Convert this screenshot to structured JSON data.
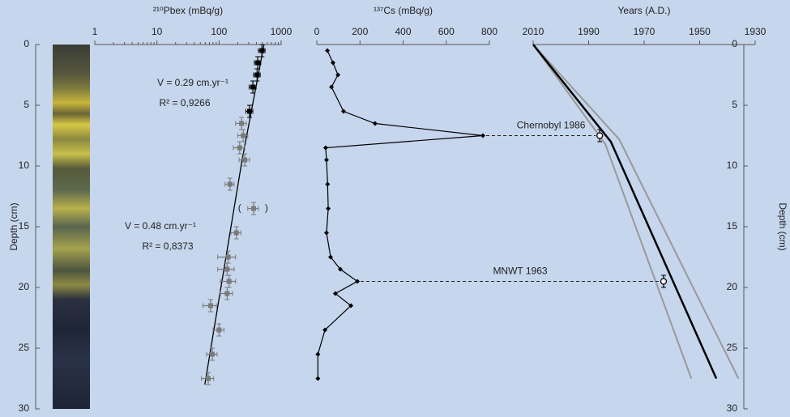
{
  "chart_data": [
    {
      "type": "scatter",
      "x_label": "²¹⁰Pbex (mBq/g)",
      "y_label": "Depth (cm)",
      "xscale": "log",
      "xlim": [
        1,
        1000
      ],
      "xticks": [
        1,
        10,
        100,
        1000
      ],
      "ylim": [
        0,
        30
      ],
      "yticks": [
        0,
        5,
        10,
        15,
        20,
        25,
        30
      ],
      "y_inverted": true,
      "series": [
        {
          "color": "#000000",
          "x": [
            490,
            420,
            410,
            350,
            310
          ],
          "y": [
            0.5,
            1.5,
            2.5,
            3.5,
            5.5
          ],
          "xerr": [
            60,
            50,
            50,
            45,
            40
          ],
          "yerr": [
            0.5,
            0.5,
            0.5,
            0.5,
            0.5
          ]
        },
        {
          "color": "#7a7a7a",
          "x": [
            230,
            245,
            215,
            260,
            150,
            190,
            140,
            135,
            145,
            135,
            73,
            100,
            78,
            67
          ],
          "y": [
            6.5,
            7.5,
            8.5,
            9.5,
            11.5,
            15.5,
            17.5,
            18.5,
            19.5,
            20.5,
            21.5,
            23.5,
            25.5,
            27.5
          ],
          "xerr": [
            45,
            45,
            45,
            50,
            25,
            35,
            45,
            40,
            40,
            30,
            18,
            20,
            15,
            15
          ],
          "yerr": [
            0.5,
            0.5,
            0.5,
            0.5,
            0.5,
            0.5,
            0.5,
            0.5,
            0.5,
            0.5,
            0.5,
            0.5,
            0.5,
            0.5
          ]
        },
        {
          "color": "#7a7a7a",
          "x": [
            360
          ],
          "y": [
            13.5
          ],
          "xerr": [
            70
          ],
          "yerr": [
            0.5
          ],
          "brackets": [
            "(",
            ")"
          ]
        }
      ],
      "fits": [
        {
          "color": "#000000",
          "x": [
            530,
            235
          ],
          "y": [
            0,
            9.5
          ],
          "annotation": [
            "V = 0.29 cm.yr⁻¹",
            "R² = 0,9266"
          ]
        },
        {
          "color": "#000000",
          "x": [
            235,
            59
          ],
          "y": [
            9.5,
            28
          ],
          "annotation": [
            "V = 0.48 cm.yr⁻¹",
            "R² = 0,8373"
          ]
        }
      ]
    },
    {
      "type": "line",
      "x_label": "¹³⁷Cs (mBq/g)",
      "xlim": [
        0,
        800
      ],
      "xticks": [
        0,
        200,
        400,
        600,
        800
      ],
      "ylim": [
        0,
        30
      ],
      "y_inverted": true,
      "color": "#000000",
      "x": [
        49,
        75,
        98,
        68,
        124,
        270,
        770,
        41,
        45,
        50,
        53,
        45,
        64,
        109,
        188,
        86,
        158,
        38,
        5,
        5
      ],
      "y": [
        0.5,
        1.5,
        2.5,
        3.5,
        5.5,
        6.5,
        7.5,
        8.5,
        9.5,
        11.5,
        13.5,
        15.5,
        17.5,
        18.5,
        19.5,
        20.5,
        21.5,
        23.5,
        25.5,
        27.5
      ]
    },
    {
      "type": "line",
      "x_label": "Years (A.D.)",
      "y_label": "Depth (cm)",
      "xlim": [
        2010,
        1930
      ],
      "xticks": [
        2010,
        1990,
        1970,
        1950,
        1930
      ],
      "ylim": [
        0,
        30
      ],
      "yticks": [
        0,
        5,
        10,
        15,
        20,
        25,
        30
      ],
      "y_inverted": true,
      "series": [
        {
          "color": "#999999",
          "x": [
            2010,
            1979,
            1936
          ],
          "y": [
            0,
            7.8,
            27.5
          ]
        },
        {
          "color": "#999999",
          "x": [
            2010,
            1984,
            1953
          ],
          "y": [
            0,
            8.2,
            27.5
          ]
        },
        {
          "color": "#000000",
          "x": [
            2010,
            1982,
            1944
          ],
          "y": [
            0,
            8,
            27.5
          ]
        }
      ],
      "events": [
        {
          "label": "Chernobyl 1986",
          "x": 1986,
          "y": 7.5,
          "yerr": 0.5
        },
        {
          "label": "MNWT 1963",
          "x": 1963,
          "y": 19.5,
          "yerr": 0.5
        }
      ]
    }
  ]
}
